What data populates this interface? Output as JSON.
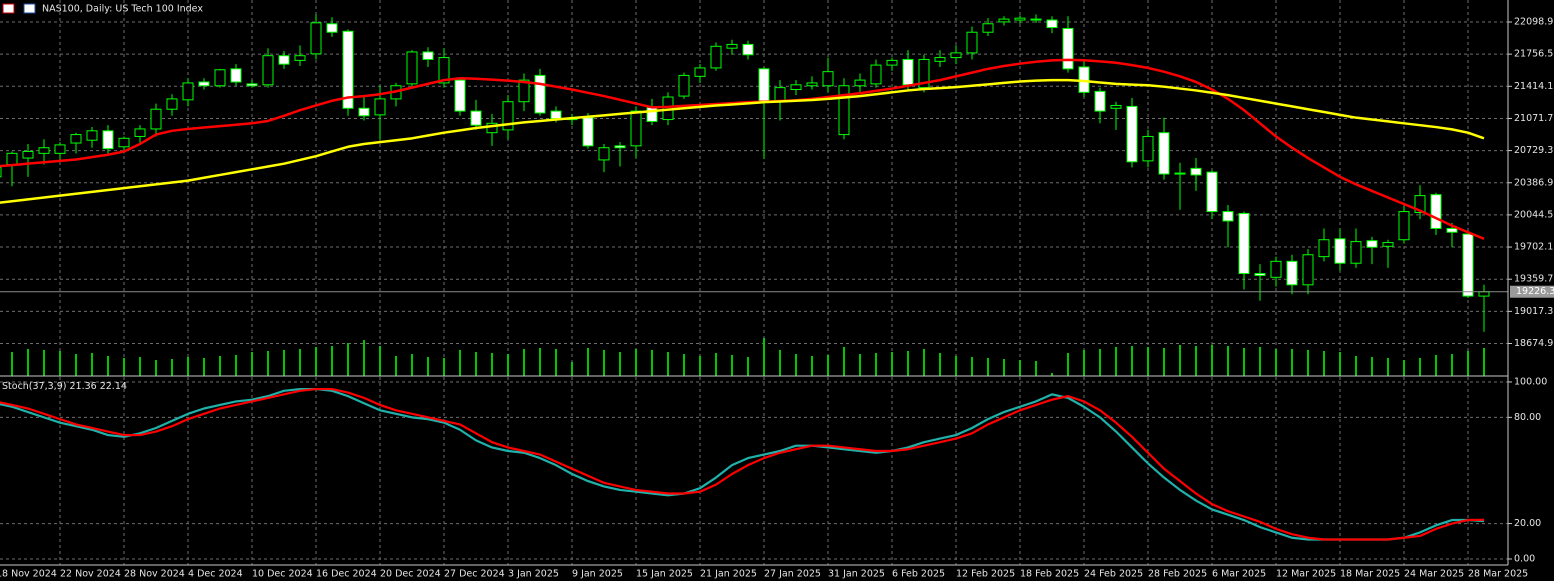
{
  "chart_data": [
    {
      "type": "candlestick",
      "title": "NAS100, Daily:  US Tech 100 Index",
      "categories": [
        "18 Nov 2024",
        null,
        null,
        null,
        "22 Nov 2024",
        null,
        null,
        null,
        "28 Nov 2024",
        null,
        null,
        null,
        "4 Dec 2024",
        null,
        null,
        null,
        "10 Dec 2024",
        null,
        null,
        null,
        "16 Dec 2024",
        null,
        null,
        null,
        "20 Dec 2024",
        null,
        null,
        null,
        "27 Dec 2024",
        null,
        null,
        null,
        "3 Jan 2025",
        null,
        null,
        null,
        "9 Jan 2025",
        null,
        null,
        null,
        "15 Jan 2025",
        null,
        null,
        null,
        "21 Jan 2025",
        null,
        null,
        null,
        "27 Jan 2025",
        null,
        null,
        null,
        "31 Jan 2025",
        null,
        null,
        null,
        "6 Feb 2025",
        null,
        null,
        null,
        "12 Feb 2025",
        null,
        null,
        null,
        "18 Feb 2025",
        null,
        null,
        null,
        "24 Feb 2025",
        null,
        null,
        null,
        "28 Feb 2025",
        null,
        null,
        null,
        "6 Mar 2025",
        null,
        null,
        null,
        "12 Mar 2025",
        null,
        null,
        null,
        "18 Mar 2025",
        null,
        null,
        null,
        "24 Mar 2025",
        null,
        null,
        null,
        "28 Mar 2025",
        null
      ],
      "open": [
        20450,
        20580,
        20650,
        20700,
        20700,
        20810,
        20840,
        20940,
        20770,
        20880,
        20960,
        21170,
        21270,
        21460,
        21420,
        21600,
        21440,
        21430,
        21740,
        21690,
        21760,
        22080,
        22000,
        21180,
        21110,
        21280,
        21440,
        21780,
        21450,
        21480,
        21150,
        20920,
        20950,
        21250,
        21530,
        21150,
        21070,
        21080,
        20630,
        20780,
        20780,
        21190,
        21060,
        21310,
        21520,
        21610,
        21820,
        21860,
        21600,
        21250,
        21380,
        21420,
        21420,
        20900,
        21420,
        21440,
        21640,
        21700,
        21400,
        21680,
        21720,
        21770,
        21990,
        22100,
        22120,
        22130,
        22120,
        22030,
        21620,
        21360,
        21180,
        21200,
        20620,
        20920,
        20490,
        20540,
        20500,
        20080,
        20060,
        19420,
        19380,
        19550,
        19300,
        19600,
        19790,
        19530,
        19770,
        19710,
        19780,
        20070,
        20260,
        19900,
        19840,
        19180
      ],
      "high": [
        20600,
        20720,
        20800,
        20850,
        20820,
        20920,
        20980,
        21000,
        20880,
        21000,
        21230,
        21330,
        21500,
        21500,
        21600,
        21650,
        21480,
        21820,
        21790,
        21850,
        22180,
        22150,
        22020,
        21320,
        21420,
        21450,
        21800,
        21830,
        21820,
        21500,
        21270,
        21120,
        21320,
        21550,
        21600,
        21200,
        21120,
        21130,
        20800,
        20820,
        21200,
        21280,
        21350,
        21560,
        21650,
        21880,
        21910,
        21900,
        21620,
        21480,
        21480,
        21520,
        21720,
        21500,
        21550,
        21700,
        21720,
        21800,
        21750,
        21800,
        21850,
        22050,
        22140,
        22160,
        22170,
        22180,
        22160,
        22160,
        21700,
        21400,
        21250,
        21290,
        20950,
        21080,
        20600,
        20650,
        20520,
        20150,
        20080,
        19520,
        19600,
        19620,
        19680,
        19900,
        19900,
        19900,
        19810,
        19780,
        20140,
        20360,
        20280,
        19960,
        19870,
        19300
      ],
      "low": [
        20300,
        20350,
        20450,
        20580,
        20620,
        20700,
        20760,
        20700,
        20700,
        20800,
        20880,
        21100,
        21200,
        21380,
        21400,
        21420,
        21400,
        21400,
        21600,
        21630,
        21700,
        21940,
        21100,
        21050,
        20850,
        21200,
        21400,
        21620,
        21400,
        21100,
        20950,
        20780,
        20850,
        21150,
        21100,
        21030,
        21000,
        20750,
        20500,
        20560,
        20650,
        21000,
        21000,
        21280,
        21450,
        21580,
        21750,
        21700,
        20640,
        21050,
        21320,
        21380,
        21350,
        20850,
        21330,
        21400,
        21580,
        21380,
        21350,
        21620,
        21650,
        21700,
        21950,
        22060,
        22080,
        22090,
        21980,
        21560,
        21300,
        21020,
        20950,
        20550,
        20550,
        20420,
        20100,
        20300,
        20000,
        19700,
        19250,
        19130,
        19280,
        19200,
        19200,
        19550,
        19450,
        19480,
        19520,
        19480,
        19740,
        20000,
        19830,
        19700,
        19160,
        18800
      ],
      "close": [
        20550,
        20700,
        20720,
        20760,
        20790,
        20900,
        20940,
        20750,
        20860,
        20960,
        21170,
        21280,
        21450,
        21420,
        21590,
        21460,
        21420,
        21740,
        21650,
        21740,
        22090,
        21990,
        21180,
        21100,
        21280,
        21420,
        21780,
        21700,
        21720,
        21150,
        21000,
        21020,
        21250,
        21480,
        21130,
        21070,
        21060,
        20780,
        20760,
        20760,
        21150,
        21040,
        21300,
        21530,
        21610,
        21840,
        21860,
        21750,
        21250,
        21400,
        21430,
        21450,
        21570,
        21420,
        21480,
        21640,
        21690,
        21430,
        21700,
        21720,
        21770,
        21990,
        22080,
        22130,
        22140,
        22120,
        22040,
        21600,
        21350,
        21150,
        21210,
        20610,
        20880,
        20480,
        20480,
        20470,
        20080,
        19980,
        19420,
        19400,
        19550,
        19300,
        19620,
        19780,
        19530,
        19760,
        19700,
        19750,
        20080,
        20250,
        19900,
        19860,
        19180,
        19226.3
      ],
      "volume": [
        22,
        24,
        27,
        26,
        25,
        22,
        23,
        20,
        18,
        19,
        16,
        17,
        19,
        18,
        20,
        21,
        24,
        25,
        26,
        27,
        29,
        30,
        33,
        36,
        30,
        20,
        22,
        19,
        18,
        26,
        24,
        23,
        22,
        27,
        28,
        27,
        14,
        28,
        26,
        24,
        27,
        26,
        24,
        22,
        20,
        23,
        21,
        19,
        38,
        26,
        22,
        20,
        21,
        29,
        22,
        23,
        24,
        25,
        27,
        23,
        20,
        19,
        18,
        17,
        16,
        15,
        3,
        23,
        26,
        27,
        29,
        30,
        29,
        28,
        31,
        30,
        31,
        30,
        28,
        29,
        27,
        27,
        26,
        25,
        24,
        20,
        19,
        18,
        16,
        18,
        21,
        22,
        25,
        28
      ],
      "volume_color": "#00c800",
      "up_color": "#000000",
      "down_color": "#ffffff",
      "outline_color": "#00ff00",
      "series": [
        {
          "color": "#ff0000",
          "values": [
            20560,
            20575,
            20590,
            20605,
            20620,
            20635,
            20660,
            20685,
            20720,
            20800,
            20900,
            20940,
            20960,
            20975,
            20990,
            21005,
            21020,
            21045,
            21100,
            21160,
            21210,
            21260,
            21295,
            21310,
            21330,
            21360,
            21400,
            21440,
            21480,
            21500,
            21495,
            21485,
            21475,
            21460,
            21440,
            21410,
            21380,
            21345,
            21310,
            21270,
            21230,
            21190,
            21195,
            21205,
            21215,
            21225,
            21235,
            21245,
            21250,
            21258,
            21265,
            21280,
            21300,
            21320,
            21340,
            21365,
            21390,
            21420,
            21450,
            21480,
            21520,
            21560,
            21600,
            21630,
            21655,
            21675,
            21690,
            21695,
            21692,
            21680,
            21665,
            21640,
            21610,
            21570,
            21520,
            21460,
            21380,
            21280,
            21160,
            21020,
            20880,
            20760,
            20650,
            20550,
            20450,
            20370,
            20300,
            20230,
            20160,
            20090,
            20010,
            19930,
            19860,
            19790
          ]
        },
        {
          "color": "#ffff00",
          "values": [
            20171,
            20190,
            20210,
            20230,
            20250,
            20270,
            20290,
            20310,
            20330,
            20350,
            20370,
            20390,
            20410,
            20440,
            20470,
            20500,
            20530,
            20560,
            20590,
            20630,
            20670,
            20720,
            20770,
            20800,
            20820,
            20840,
            20860,
            20890,
            20920,
            20945,
            20970,
            20990,
            21010,
            21030,
            21045,
            21060,
            21075,
            21090,
            21105,
            21120,
            21135,
            21150,
            21165,
            21180,
            21195,
            21210,
            21220,
            21232,
            21245,
            21252,
            21260,
            21268,
            21280,
            21295,
            21310,
            21330,
            21350,
            21370,
            21385,
            21395,
            21405,
            21420,
            21435,
            21450,
            21465,
            21475,
            21480,
            21480,
            21470,
            21455,
            21440,
            21432,
            21425,
            21410,
            21390,
            21370,
            21345,
            21320,
            21290,
            21260,
            21230,
            21200,
            21170,
            21140,
            21110,
            21080,
            21060,
            21040,
            21020,
            21000,
            20980,
            20955,
            20920,
            20860
          ]
        }
      ],
      "last_price": 19226.3,
      "ylim": [
        18328.8,
        22333.2
      ],
      "yticks": [
        22098.9,
        21756.5,
        21414.1,
        21071.7,
        20729.3,
        20386.9,
        20044.5,
        19702.1,
        19359.7,
        19017.3,
        18674.9
      ],
      "grid": true
    },
    {
      "type": "line",
      "title": "Stoch(37,3,9)",
      "series": [
        {
          "color": "#20b2aa",
          "values": [
            88,
            86,
            83,
            80,
            77,
            75,
            73,
            70,
            69,
            71,
            74,
            78,
            82,
            85,
            87,
            89,
            90,
            92,
            95,
            96,
            96,
            95,
            92,
            88,
            84,
            82,
            80,
            79,
            77,
            73,
            67,
            63,
            61,
            60,
            57,
            53,
            48,
            44,
            41,
            39,
            38,
            37,
            36,
            37,
            40,
            46,
            53,
            57,
            59,
            61,
            64,
            64,
            63,
            62,
            61,
            60,
            61,
            63,
            66,
            68,
            70,
            74,
            79,
            83,
            86,
            89,
            93,
            91,
            86,
            80,
            72,
            63,
            54,
            46,
            39,
            33,
            28,
            25,
            22,
            18,
            15,
            12,
            11,
            11,
            11,
            11,
            11,
            11,
            12,
            15,
            19,
            22,
            22,
            21.36
          ]
        },
        {
          "color": "#ff0000",
          "values": [
            89,
            87,
            85,
            82,
            79,
            76,
            74,
            72,
            70,
            70,
            72,
            75,
            79,
            82,
            85,
            87,
            89,
            91,
            93,
            95,
            96,
            96,
            94,
            91,
            87,
            84,
            82,
            80,
            78,
            76,
            71,
            66,
            63,
            61,
            59,
            55,
            51,
            47,
            43,
            41,
            39,
            38,
            37,
            37,
            38,
            42,
            48,
            53,
            57,
            60,
            62,
            64,
            64,
            63,
            62,
            61,
            61,
            62,
            64,
            66,
            68,
            71,
            76,
            80,
            84,
            87,
            90,
            92,
            89,
            84,
            77,
            69,
            60,
            51,
            44,
            37,
            31,
            27,
            24,
            21,
            17,
            14,
            12,
            11,
            11,
            11,
            11,
            11,
            12,
            13,
            17,
            20,
            22,
            22.14
          ]
        }
      ],
      "ylim": [
        -3.4,
        102.8
      ],
      "yticks": [
        {
          "value": 100,
          "label": "100.00"
        },
        {
          "value": 80,
          "label": "80.00"
        },
        {
          "value": 20,
          "label": "20.00"
        },
        {
          "value": 0,
          "label": "0.00"
        }
      ],
      "grid": true
    }
  ]
}
